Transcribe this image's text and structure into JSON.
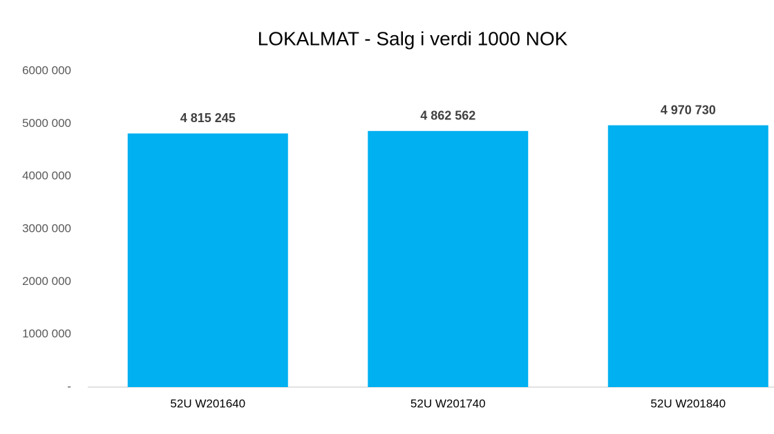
{
  "chart_data": {
    "type": "bar",
    "title": "LOKALMAT - Salg i verdi 1000 NOK",
    "categories": [
      "52U W201640",
      "52U W201740",
      "52U W201840"
    ],
    "values": [
      4815245,
      4862562,
      4970730
    ],
    "value_labels": [
      "4 815 245",
      "4 862 562",
      "4 970 730"
    ],
    "color": "#00b0f0",
    "ylim": [
      0,
      6000000
    ],
    "yticks": [
      {
        "value": 0,
        "label": "-"
      },
      {
        "value": 1000000,
        "label": "1000 000"
      },
      {
        "value": 2000000,
        "label": "2000 000"
      },
      {
        "value": 3000000,
        "label": "3000 000"
      },
      {
        "value": 4000000,
        "label": "4000 000"
      },
      {
        "value": 5000000,
        "label": "5000 000"
      },
      {
        "value": 6000000,
        "label": "6000 000"
      }
    ],
    "grid": false
  }
}
